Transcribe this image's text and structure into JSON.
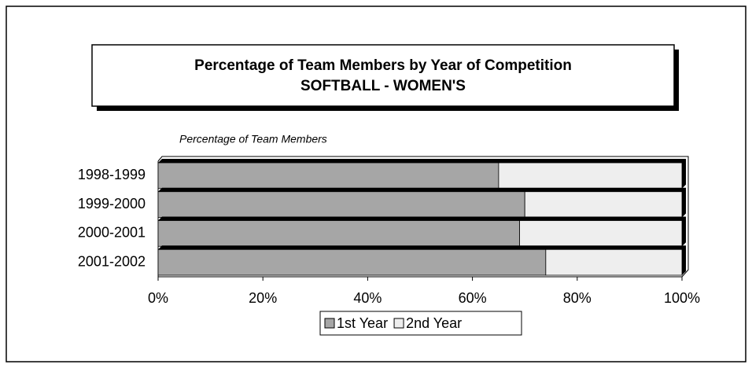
{
  "chart_data": {
    "type": "stacked-bar-horizontal",
    "title": "Percentage of Team Members by Year of Competition",
    "subtitle": "SOFTBALL - WOMEN'S",
    "x_axis_label": "Percentage of Team Members",
    "categories": [
      "1998-1999",
      "1999-2000",
      "2000-2001",
      "2001-2002"
    ],
    "series": [
      {
        "name": "1st Year",
        "color": "#a6a6a6",
        "values": [
          65,
          70,
          69,
          74
        ]
      },
      {
        "name": "2nd Year",
        "color": "#eeeeee",
        "values": [
          35,
          30,
          31,
          26
        ]
      }
    ],
    "xlim": [
      0,
      100
    ],
    "xticks": [
      {
        "value": 0,
        "label": "0%"
      },
      {
        "value": 20,
        "label": "20%"
      },
      {
        "value": 40,
        "label": "40%"
      },
      {
        "value": 60,
        "label": "60%"
      },
      {
        "value": 80,
        "label": "80%"
      },
      {
        "value": 100,
        "label": "100%"
      }
    ],
    "legend": "bottom"
  }
}
